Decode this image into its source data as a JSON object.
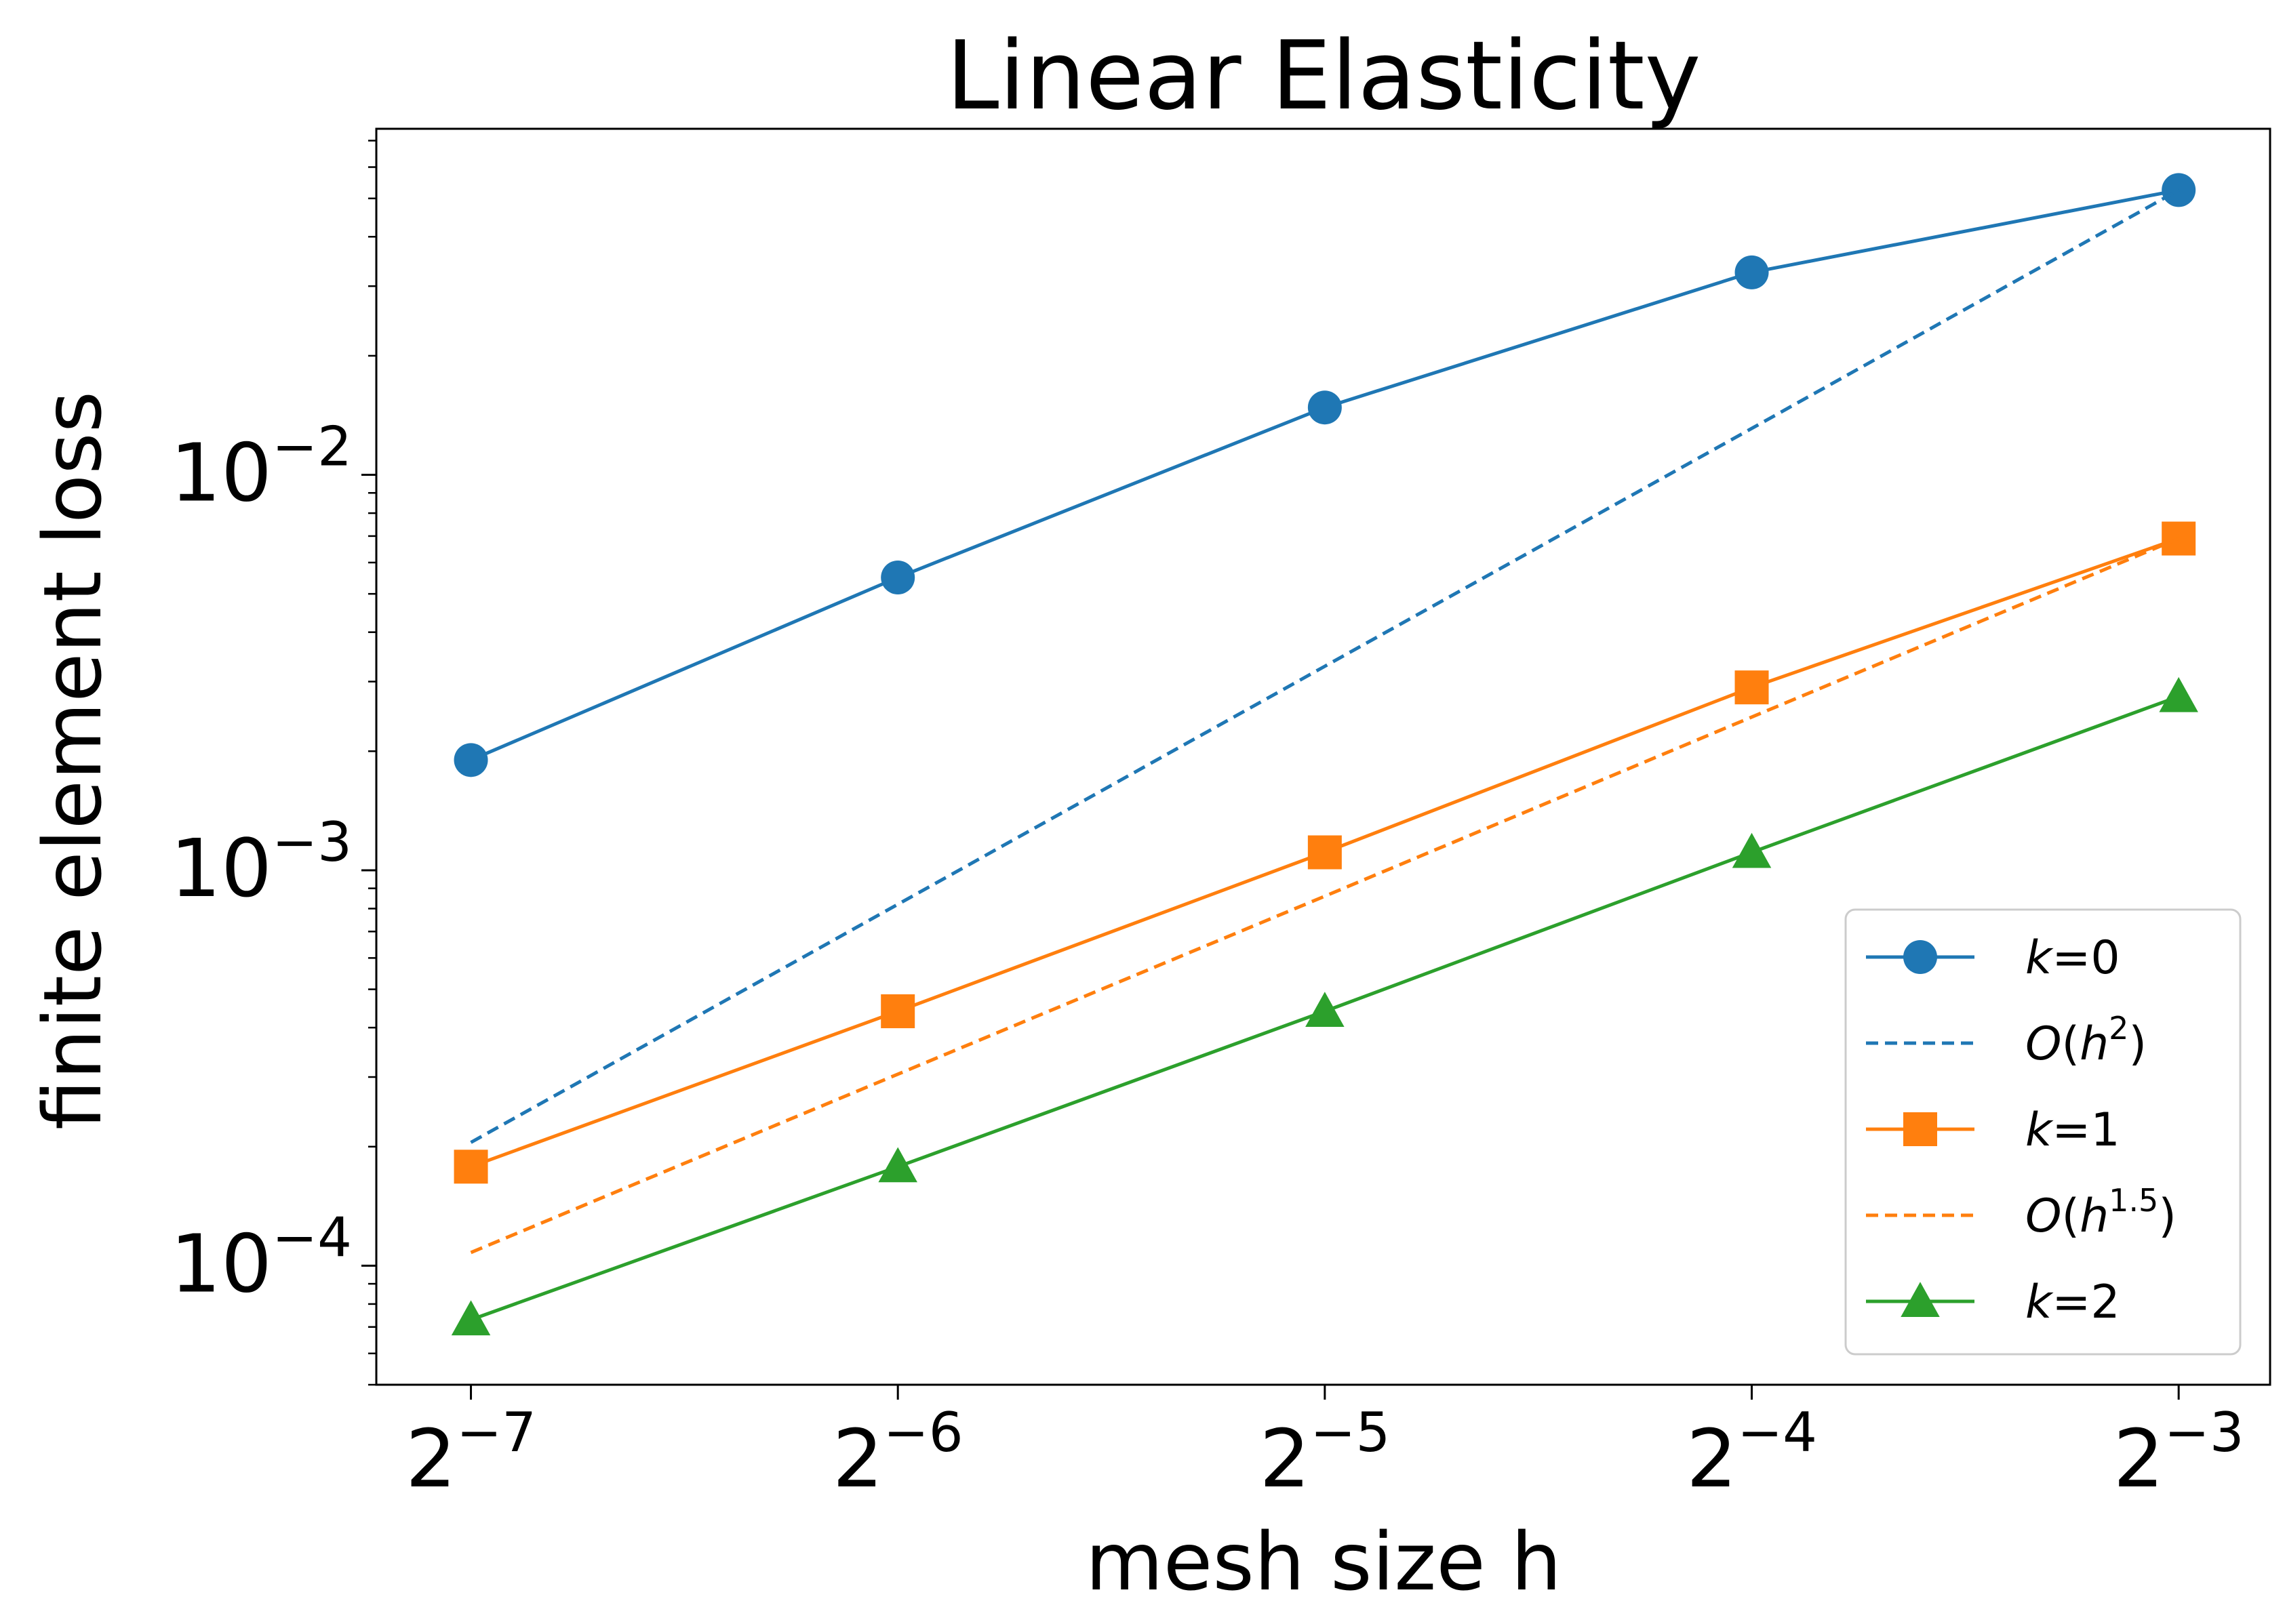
{
  "chart_data": {
    "type": "line",
    "title": "Linear Elasticity",
    "xlabel": "mesh size h",
    "ylabel": "finite element loss",
    "xscale": "log2",
    "yscale": "log10",
    "x": [
      0.0078125,
      0.015625,
      0.03125,
      0.0625,
      0.125
    ],
    "xlim": [
      0.0067,
      0.145
    ],
    "ylim": [
      5e-05,
      0.075
    ],
    "xticks": [
      {
        "value": 0.0078125,
        "base": "2",
        "exp": "−7"
      },
      {
        "value": 0.015625,
        "base": "2",
        "exp": "−6"
      },
      {
        "value": 0.03125,
        "base": "2",
        "exp": "−5"
      },
      {
        "value": 0.0625,
        "base": "2",
        "exp": "−4"
      },
      {
        "value": 0.125,
        "base": "2",
        "exp": "−3"
      }
    ],
    "yticks": [
      {
        "value": 0.0001,
        "base": "10",
        "exp": "−4"
      },
      {
        "value": 0.001,
        "base": "10",
        "exp": "−3"
      },
      {
        "value": 0.01,
        "base": "10",
        "exp": "−2"
      }
    ],
    "series": [
      {
        "name": "k=0",
        "var": "k",
        "eq": "=0",
        "color": "#1f77b4",
        "style": "solid",
        "marker": "circle",
        "values": [
          0.0019,
          0.0055,
          0.0148,
          0.0325,
          0.0525
        ]
      },
      {
        "name": "O(h^2)",
        "fn": "O",
        "var": "h",
        "sup": "2",
        "color": "#1f77b4",
        "style": "dashed",
        "marker": "none",
        "values": [
          0.000205,
          0.00082,
          0.00328,
          0.0131,
          0.0525
        ]
      },
      {
        "name": "k=1",
        "var": "k",
        "eq": "=1",
        "color": "#ff7f0e",
        "style": "solid",
        "marker": "square",
        "values": [
          0.000178,
          0.00044,
          0.00111,
          0.0029,
          0.0069
        ]
      },
      {
        "name": "O(h^1.5)",
        "fn": "O",
        "var": "h",
        "sup": "1.5",
        "color": "#ff7f0e",
        "style": "dashed",
        "marker": "none",
        "values": [
          0.000108,
          0.000305,
          0.00086,
          0.00244,
          0.0069
        ]
      },
      {
        "name": "k=2",
        "var": "k",
        "eq": "=2",
        "color": "#2ca02c",
        "style": "solid",
        "marker": "triangle",
        "values": [
          7.3e-05,
          0.000178,
          0.00044,
          0.00111,
          0.00275
        ]
      }
    ],
    "legend": {
      "position": "lower right"
    }
  }
}
